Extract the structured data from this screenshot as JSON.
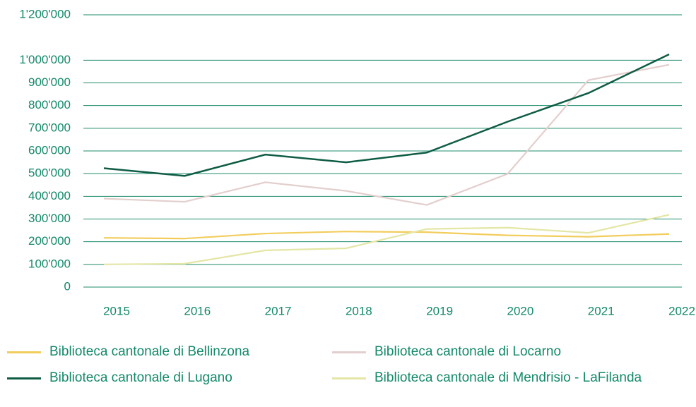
{
  "chart_data": {
    "type": "line",
    "categories": [
      "2015",
      "2016",
      "2017",
      "2018",
      "2019",
      "2020",
      "2021",
      "2022"
    ],
    "series": [
      {
        "name": "Biblioteca cantonale di Bellinzona",
        "color": "#f2cd5c",
        "values": [
          217000,
          214000,
          236000,
          245000,
          242000,
          228000,
          222000,
          234000
        ]
      },
      {
        "name": "Biblioteca cantonale di Locarno",
        "color": "#e3cfcd",
        "values": [
          390000,
          376000,
          462000,
          424000,
          362000,
          499000,
          912000,
          980000
        ]
      },
      {
        "name": "Biblioteca cantonale di Lugano",
        "color": "#0e5c45",
        "values": [
          524000,
          490000,
          584000,
          550000,
          593000,
          729000,
          855000,
          1026000
        ]
      },
      {
        "name": "Biblioteca cantonale di Mendrisio - LaFilanda",
        "color": "#e4e6a6",
        "values": [
          100000,
          103000,
          162000,
          171000,
          256000,
          262000,
          239000,
          319000
        ]
      }
    ],
    "ylim": [
      0,
      1200000
    ],
    "yticks": [
      {
        "value": 0,
        "label": "0"
      },
      {
        "value": 100000,
        "label": "100'000"
      },
      {
        "value": 200000,
        "label": "200'000"
      },
      {
        "value": 300000,
        "label": "300'000"
      },
      {
        "value": 400000,
        "label": "400'000"
      },
      {
        "value": 500000,
        "label": "500'000"
      },
      {
        "value": 600000,
        "label": "600'000"
      },
      {
        "value": 700000,
        "label": "700'000"
      },
      {
        "value": 800000,
        "label": "800'000"
      },
      {
        "value": 900000,
        "label": "900'000"
      },
      {
        "value": 1000000,
        "label": "1'000'000"
      },
      {
        "value": 1200000,
        "label": "1'200'000"
      }
    ],
    "grid": true
  }
}
